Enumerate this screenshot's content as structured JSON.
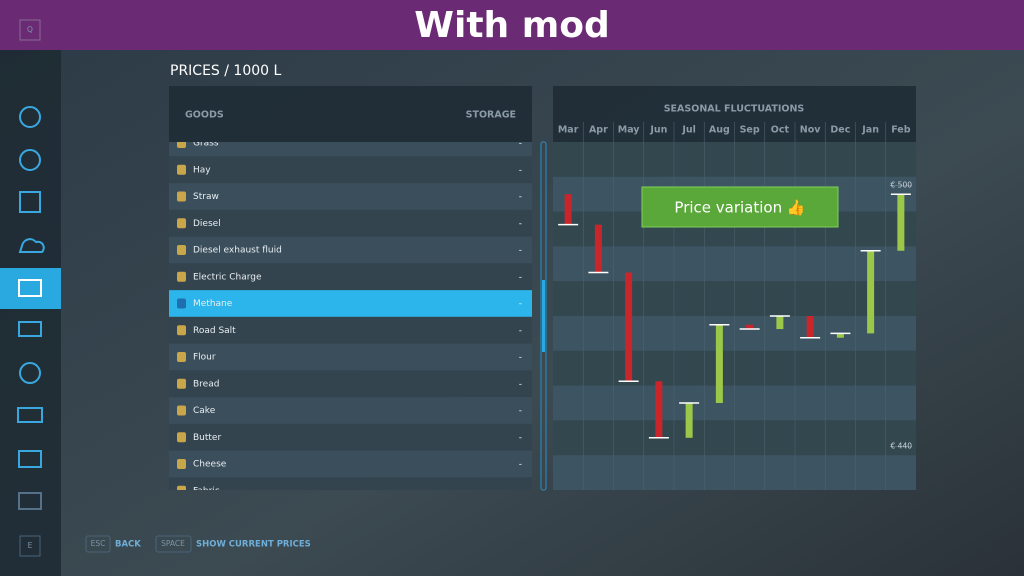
{
  "banner": "With mod",
  "sidebar": {
    "top_key": "Q",
    "bottom_key": "E"
  },
  "page_title": "PRICES / 1000 L",
  "table": {
    "headers": [
      "GOODS",
      "STORAGE"
    ],
    "rows": [
      [
        "Grass",
        "-"
      ],
      [
        "Hay",
        "-"
      ],
      [
        "Straw",
        "-"
      ],
      [
        "Diesel",
        "-"
      ],
      [
        "Diesel exhaust fluid",
        "-"
      ],
      [
        "Electric Charge",
        "-"
      ],
      [
        "Methane",
        "-"
      ],
      [
        "Road Salt",
        "-"
      ],
      [
        "Flour",
        "-"
      ],
      [
        "Bread",
        "-"
      ],
      [
        "Cake",
        "-"
      ],
      [
        "Butter",
        "-"
      ],
      [
        "Cheese",
        "-"
      ],
      [
        "Fabric",
        "-"
      ]
    ],
    "selected_row": 6
  },
  "footer": {
    "buttons": [
      {
        "key": "ESC",
        "label": "BACK"
      },
      {
        "key": "SPACE",
        "label": "SHOW CURRENT PRICES"
      }
    ]
  },
  "chart_data": {
    "type": "floating-bar",
    "title": "SEASONAL FLUCTUATIONS",
    "categories": [
      "Mar",
      "Apr",
      "May",
      "Jun",
      "Jul",
      "Aug",
      "Sep",
      "Oct",
      "Nov",
      "Dec",
      "Jan",
      "Feb"
    ],
    "open": [
      498,
      491,
      480,
      455,
      442,
      450,
      468,
      467,
      470,
      465,
      466,
      485
    ],
    "close": [
      491,
      480,
      455,
      442,
      450,
      468,
      467,
      470,
      465,
      466,
      485,
      498
    ],
    "colors": {
      "up": "#9cc84a",
      "down": "#c8262a"
    },
    "ylim": [
      430,
      510
    ],
    "yticks": [
      {
        "value": 440,
        "label": "€ 440"
      },
      {
        "value": 500,
        "label": "€ 500"
      }
    ],
    "annotation": "Price variation 👍"
  }
}
